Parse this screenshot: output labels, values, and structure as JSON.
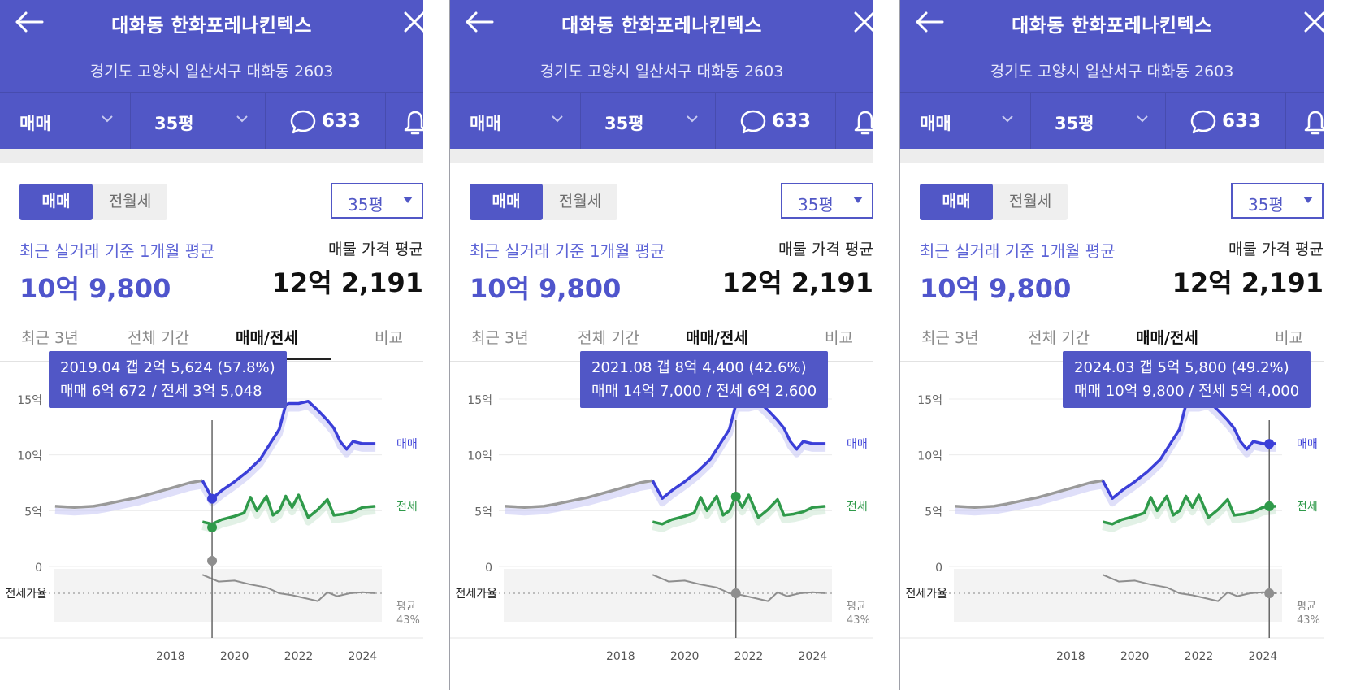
{
  "header": {
    "title": "대화동 한화포레나킨텍스",
    "address": "경기도 고양시 일산서구 대화동 2603",
    "trade_type": "매매",
    "size": "35평",
    "comment_count": "633"
  },
  "summary": {
    "segment_sale": "매매",
    "segment_lease": "전월세",
    "size_select": "35평",
    "recent_label": "최근 실거래 기준 1개월 평균",
    "recent_value": "10억 9,800",
    "listing_label": "매물 가격 평균",
    "listing_value": "12억 2,191"
  },
  "tabs": [
    "최근 3년",
    "전체 기간",
    "매매/전세",
    "비교"
  ],
  "chart_data": {
    "type": "line",
    "y_unit": "억",
    "y_ticks": [
      "15억",
      "10억",
      "5억",
      "0"
    ],
    "ylim": [
      0,
      15
    ],
    "x_ticks": [
      "2018",
      "2020",
      "2022",
      "2024"
    ],
    "series": [
      {
        "name": "매매",
        "color": "#3b3fd8",
        "points": [
          [
            2014.4,
            5.4
          ],
          [
            2015.0,
            5.3
          ],
          [
            2015.6,
            5.4
          ],
          [
            2016.0,
            5.6
          ],
          [
            2016.5,
            5.9
          ],
          [
            2017.0,
            6.2
          ],
          [
            2017.5,
            6.6
          ],
          [
            2018.0,
            7.0
          ],
          [
            2018.6,
            7.5
          ],
          [
            2019.0,
            7.7
          ],
          [
            2019.3,
            6.1
          ],
          [
            2019.6,
            6.8
          ],
          [
            2020.0,
            7.6
          ],
          [
            2020.4,
            8.5
          ],
          [
            2020.8,
            9.6
          ],
          [
            2021.0,
            10.5
          ],
          [
            2021.4,
            12.3
          ],
          [
            2021.6,
            14.5
          ],
          [
            2021.7,
            14.6
          ],
          [
            2022.0,
            14.6
          ],
          [
            2022.3,
            14.8
          ],
          [
            2022.6,
            14.0
          ],
          [
            2022.9,
            13.1
          ],
          [
            2023.1,
            12.4
          ],
          [
            2023.3,
            11.2
          ],
          [
            2023.5,
            10.5
          ],
          [
            2023.7,
            11.2
          ],
          [
            2024.0,
            11.0
          ],
          [
            2024.4,
            11.0
          ]
        ]
      },
      {
        "name": "전세",
        "color": "#2f9a4a",
        "points": [
          [
            2019.0,
            4.0
          ],
          [
            2019.3,
            3.8
          ],
          [
            2019.6,
            4.2
          ],
          [
            2020.0,
            4.5
          ],
          [
            2020.3,
            4.8
          ],
          [
            2020.5,
            6.2
          ],
          [
            2020.7,
            5.0
          ],
          [
            2021.0,
            6.3
          ],
          [
            2021.2,
            4.6
          ],
          [
            2021.4,
            5.0
          ],
          [
            2021.6,
            6.3
          ],
          [
            2021.8,
            5.3
          ],
          [
            2022.0,
            6.4
          ],
          [
            2022.3,
            4.4
          ],
          [
            2022.6,
            5.1
          ],
          [
            2022.9,
            6.0
          ],
          [
            2023.1,
            4.6
          ],
          [
            2023.4,
            4.7
          ],
          [
            2023.7,
            4.9
          ],
          [
            2024.0,
            5.3
          ],
          [
            2024.4,
            5.4
          ]
        ]
      },
      {
        "name": "전세가율",
        "color": "#8e8e8e",
        "points": [
          [
            2019.0,
            62
          ],
          [
            2019.5,
            55
          ],
          [
            2020.0,
            56
          ],
          [
            2020.5,
            52
          ],
          [
            2021.0,
            49
          ],
          [
            2021.4,
            43
          ],
          [
            2021.8,
            41
          ],
          [
            2022.2,
            38
          ],
          [
            2022.6,
            35
          ],
          [
            2022.9,
            44
          ],
          [
            2023.2,
            40
          ],
          [
            2023.6,
            43
          ],
          [
            2024.0,
            44
          ],
          [
            2024.4,
            43
          ]
        ]
      }
    ],
    "jeonse_ratio_label": "전세가율",
    "avg_label": "평균",
    "avg_ratio": "43%",
    "sale_label": "매매",
    "lease_label": "전세"
  },
  "panels": [
    {
      "tooltip_line1": "2019.04  갭 2억 5,624 (57.8%)",
      "tooltip_line2": "매매 6억 672 / 전세 3억 5,048",
      "cursor_x": 2019.3,
      "sale": 6.07,
      "lease": 3.5
    },
    {
      "tooltip_line1": "2021.08  갭 8억 4,400 (42.6%)",
      "tooltip_line2": "매매 14억 7,000 / 전세 6억 2,600",
      "cursor_x": 2021.6,
      "sale": 14.7,
      "lease": 6.26
    },
    {
      "tooltip_line1": "2024.03  갭 5억 5,800 (49.2%)",
      "tooltip_line2": "매매 10억 9,800 / 전세 5억 4,000",
      "cursor_x": 2024.2,
      "sale": 10.98,
      "lease": 5.4
    }
  ]
}
